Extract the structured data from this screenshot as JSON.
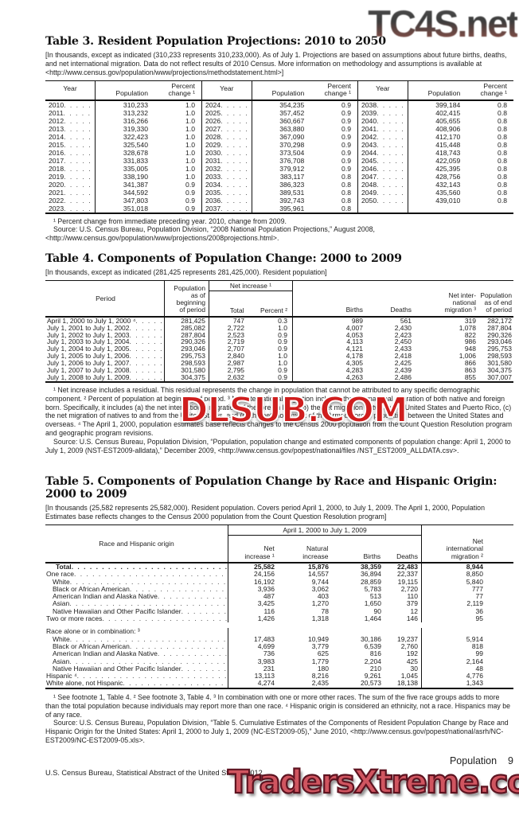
{
  "watermarks": {
    "top": "TC4S.net",
    "middle": "DLSUB.COM",
    "bottom": "TradersXtreme.com"
  },
  "footer": {
    "section": "Population",
    "page": "9",
    "credit": "U.S. Census Bureau, Statistical Abstract of the United States: 2012"
  },
  "table3": {
    "title": "Table 3. Resident Population Projections: 2010 to 2050",
    "note": "[In thousands, except as indicated (310,233 represents 310,233,000). As of July 1. Projections are based on assumptions about future births, deaths, and net international migration. Data do not reflect results of 2010 Census. More information on methodology and assumptions is available at <http://www.census.gov/population/www/projections/methodstatement.html>]",
    "headers": {
      "year": "Year",
      "population": "Population",
      "percent": "Percent\nchange ¹"
    },
    "blocks": [
      {
        "rows": [
          [
            "2010",
            "310,233",
            "1.0"
          ],
          [
            "2011",
            "313,232",
            "1.0"
          ],
          [
            "2012",
            "316,266",
            "1.0"
          ],
          [
            "2013",
            "319,330",
            "1.0"
          ],
          [
            "2014",
            "322,423",
            "1.0"
          ],
          [
            "2015",
            "325,540",
            "1.0"
          ],
          [
            "2016",
            "328,678",
            "1.0"
          ],
          [
            "2017",
            "331,833",
            "1.0"
          ],
          [
            "2018",
            "335,005",
            "1.0"
          ],
          [
            "2019",
            "338,190",
            "1.0"
          ],
          [
            "2020",
            "341,387",
            "0.9"
          ],
          [
            "2021",
            "344,592",
            "0.9"
          ],
          [
            "2022",
            "347,803",
            "0.9"
          ],
          [
            "2023",
            "351,018",
            "0.9"
          ]
        ]
      },
      {
        "rows": [
          [
            "2024",
            "354,235",
            "0.9"
          ],
          [
            "2025",
            "357,452",
            "0.9"
          ],
          [
            "2026",
            "360,667",
            "0.9"
          ],
          [
            "2027",
            "363,880",
            "0.9"
          ],
          [
            "2028",
            "367,090",
            "0.9"
          ],
          [
            "2029",
            "370,298",
            "0.9"
          ],
          [
            "2030",
            "373,504",
            "0.9"
          ],
          [
            "2031",
            "376,708",
            "0.9"
          ],
          [
            "2032",
            "379,912",
            "0.9"
          ],
          [
            "2033",
            "383,117",
            "0.8"
          ],
          [
            "2034",
            "386,323",
            "0.8"
          ],
          [
            "2035",
            "389,531",
            "0.8"
          ],
          [
            "2036",
            "392,743",
            "0.8"
          ],
          [
            "2037",
            "395,961",
            "0.8"
          ]
        ]
      },
      {
        "rows": [
          [
            "2038",
            "399,184",
            "0.8"
          ],
          [
            "2039",
            "402,415",
            "0.8"
          ],
          [
            "2040",
            "405,655",
            "0.8"
          ],
          [
            "2041",
            "408,906",
            "0.8"
          ],
          [
            "2042",
            "412,170",
            "0.8"
          ],
          [
            "2043",
            "415,448",
            "0.8"
          ],
          [
            "2044",
            "418,743",
            "0.8"
          ],
          [
            "2045",
            "422,059",
            "0.8"
          ],
          [
            "2046",
            "425,395",
            "0.8"
          ],
          [
            "2047",
            "428,756",
            "0.8"
          ],
          [
            "2048",
            "432,143",
            "0.8"
          ],
          [
            "2049",
            "435,560",
            "0.8"
          ],
          [
            "2050",
            "439,010",
            "0.8"
          ]
        ]
      }
    ],
    "footnote": "¹ Percent change from immediate preceding year. 2010, change from 2009.",
    "source": "Source: U.S. Census Bureau, Population Division, “2008 National Population Projections,” August 2008, <http://www.census.gov/population/www/projections/2008projections.html>."
  },
  "table4": {
    "title": "Table 4. Components of Population Change: 2000 to 2009",
    "note": "[In thousands, except as indicated (281,425 represents 281,425,000). Resident population]",
    "headers": {
      "period": "Period",
      "begin": "Population\nas of\nbeginning\nof period",
      "net_increase": "Net increase ¹",
      "total": "Total",
      "percent": "Percent ²",
      "births": "Births",
      "deaths": "Deaths",
      "net_intl": "Net inter-\nnational\nmigration ³",
      "end": "Population\nas of end\nof period"
    },
    "rows": [
      [
        "April 1, 2000 to July 1, 2000 ⁴",
        "281,425",
        "747",
        "0.3",
        "989",
        "561",
        "319",
        "282,172"
      ],
      [
        "July 1, 2001 to July 1, 2002",
        "285,082",
        "2,722",
        "1.0",
        "4,007",
        "2,430",
        "1,078",
        "287,804"
      ],
      [
        "July 1, 2002 to July 1, 2003",
        "287,804",
        "2,523",
        "0.9",
        "4,053",
        "2,423",
        "822",
        "290,326"
      ],
      [
        "July 1, 2003 to July 1, 2004",
        "290,326",
        "2,719",
        "0.9",
        "4,113",
        "2,450",
        "986",
        "293,046"
      ],
      [
        "July 1, 2004 to July 1, 2005",
        "293,046",
        "2,707",
        "0.9",
        "4,121",
        "2,433",
        "948",
        "295,753"
      ],
      [
        "July 1, 2005 to July 1, 2006",
        "295,753",
        "2,840",
        "1.0",
        "4,178",
        "2,418",
        "1,006",
        "298,593"
      ],
      [
        "July 1, 2006 to July 1, 2007",
        "298,593",
        "2,987",
        "1.0",
        "4,305",
        "2,425",
        "866",
        "301,580"
      ],
      [
        "July 1, 2007 to July 1, 2008",
        "301,580",
        "2,795",
        "0.9",
        "4,283",
        "2,439",
        "863",
        "304,375"
      ],
      [
        "July 1, 2008 to July 1, 2009",
        "304,375",
        "2,632",
        "0.9",
        "4,263",
        "2,486",
        "855",
        "307,007"
      ]
    ],
    "footnote": "¹ Net increase includes a residual. This residual represents the change in population that cannot be attributed to any specific demographic component. ² Percent of population at beginning of period. ³ Net international migration includes the international migration of both native and foreign born. Specifically, it includes (a) the net international migration of the foreign born, (b) the net migration between the United States and Puerto Rico, (c) the net migration of natives to and from the United States, and (d) the net movement of the Armed Forces population between the United States and overseas. ⁴ The April 1, 2000, population estimates base reflects changes to the Census 2000 population from the Count Question Resolution program and geographic program revisions.",
    "source": "Source: U.S. Census Bureau, Population Division, “Population, population change and estimated components of population change: April 1, 2000 to July 1, 2009 (NST-EST2009-alldata),” December 2009, <http://www.census.gov/popest/national/files /NST_EST2009_ALLDATA.csv>."
  },
  "table5": {
    "title_line1": "Table 5. Components of Population Change by Race and Hispanic Origin:",
    "title_line2": "2000 to 2009",
    "note": "[In thousands (25,582 represents 25,582,000). Resident population. Covers period April 1, 2000, to July 1, 2009. The April 1, 2000, Population Estimates base reflects changes to the Census 2000 population from the Count Question Resolution program]",
    "headers": {
      "stub": "Race and Hispanic origin",
      "spanner": "April 1, 2000 to July 1, 2009",
      "net_increase": "Net\nincrease ¹",
      "natural": "Natural\nincrease",
      "births": "Births",
      "deaths": "Deaths",
      "net_intl": "Net\ninternational\nmigration ²"
    },
    "rows": [
      {
        "label": "Total",
        "indent": 2,
        "bold": true,
        "values": [
          "25,582",
          "15,876",
          "38,359",
          "22,483",
          "8,944"
        ]
      },
      {
        "label": "One race",
        "indent": 0,
        "values": [
          "24,156",
          "14,557",
          "36,894",
          "22,337",
          "8,850"
        ]
      },
      {
        "label": "White",
        "indent": 1,
        "values": [
          "16,192",
          "9,744",
          "28,859",
          "19,115",
          "5,840"
        ]
      },
      {
        "label": "Black or African American",
        "indent": 1,
        "values": [
          "3,936",
          "3,062",
          "5,783",
          "2,720",
          "777"
        ]
      },
      {
        "label": "American Indian and Alaska Native",
        "indent": 1,
        "values": [
          "487",
          "403",
          "513",
          "110",
          "77"
        ]
      },
      {
        "label": "Asian",
        "indent": 1,
        "values": [
          "3,425",
          "1,270",
          "1,650",
          "379",
          "2,119"
        ]
      },
      {
        "label": "Native Hawaiian and Other Pacific Islander",
        "indent": 1,
        "values": [
          "116",
          "78",
          "90",
          "12",
          "36"
        ]
      },
      {
        "label": "Two or more races",
        "indent": 0,
        "values": [
          "1,426",
          "1,318",
          "1,464",
          "146",
          "95"
        ]
      },
      {
        "type": "spacer"
      },
      {
        "type": "section",
        "label": "Race alone or in combination: ³",
        "indent": 0
      },
      {
        "label": "White",
        "indent": 1,
        "values": [
          "17,483",
          "10,949",
          "30,186",
          "19,237",
          "5,914"
        ]
      },
      {
        "label": "Black or African American",
        "indent": 1,
        "values": [
          "4,699",
          "3,779",
          "6,539",
          "2,760",
          "818"
        ]
      },
      {
        "label": "American Indian and Alaska Native",
        "indent": 1,
        "values": [
          "736",
          "625",
          "816",
          "192",
          "99"
        ]
      },
      {
        "label": "Asian",
        "indent": 1,
        "values": [
          "3,983",
          "1,779",
          "2,204",
          "425",
          "2,164"
        ]
      },
      {
        "label": "Native Hawaiian and Other Pacific Islander",
        "indent": 1,
        "values": [
          "231",
          "180",
          "210",
          "30",
          "48"
        ]
      },
      {
        "label": "Hispanic ⁴",
        "indent": 0,
        "values": [
          "13,113",
          "8,216",
          "9,261",
          "1,045",
          "4,776"
        ]
      },
      {
        "label": "White alone, not Hispanic",
        "indent": 0,
        "values": [
          "4,274",
          "2,435",
          "20,573",
          "18,138",
          "1,343"
        ]
      }
    ],
    "footnote": "¹ See footnote 1, Table 4. ² See footnote 3, Table 4. ³ In combination with one or more other races. The sum of the five race groups adds to more than the total population because individuals may report more than one race. ⁴ Hispanic origin is considered an ethnicity, not a race. Hispanics may be of any race.",
    "source": "Source: U.S. Census Bureau, Population Division, “Table 5. Cumulative Estimates of the Components of Resident Population Change by Race and Hispanic Origin for the United States: April 1, 2000 to July 1, 2009 (NC-EST2009-05),” June 2010, <http://www.census.gov/popest/national/asrh/NC-EST2009/NC-EST2009-05.xls>."
  }
}
